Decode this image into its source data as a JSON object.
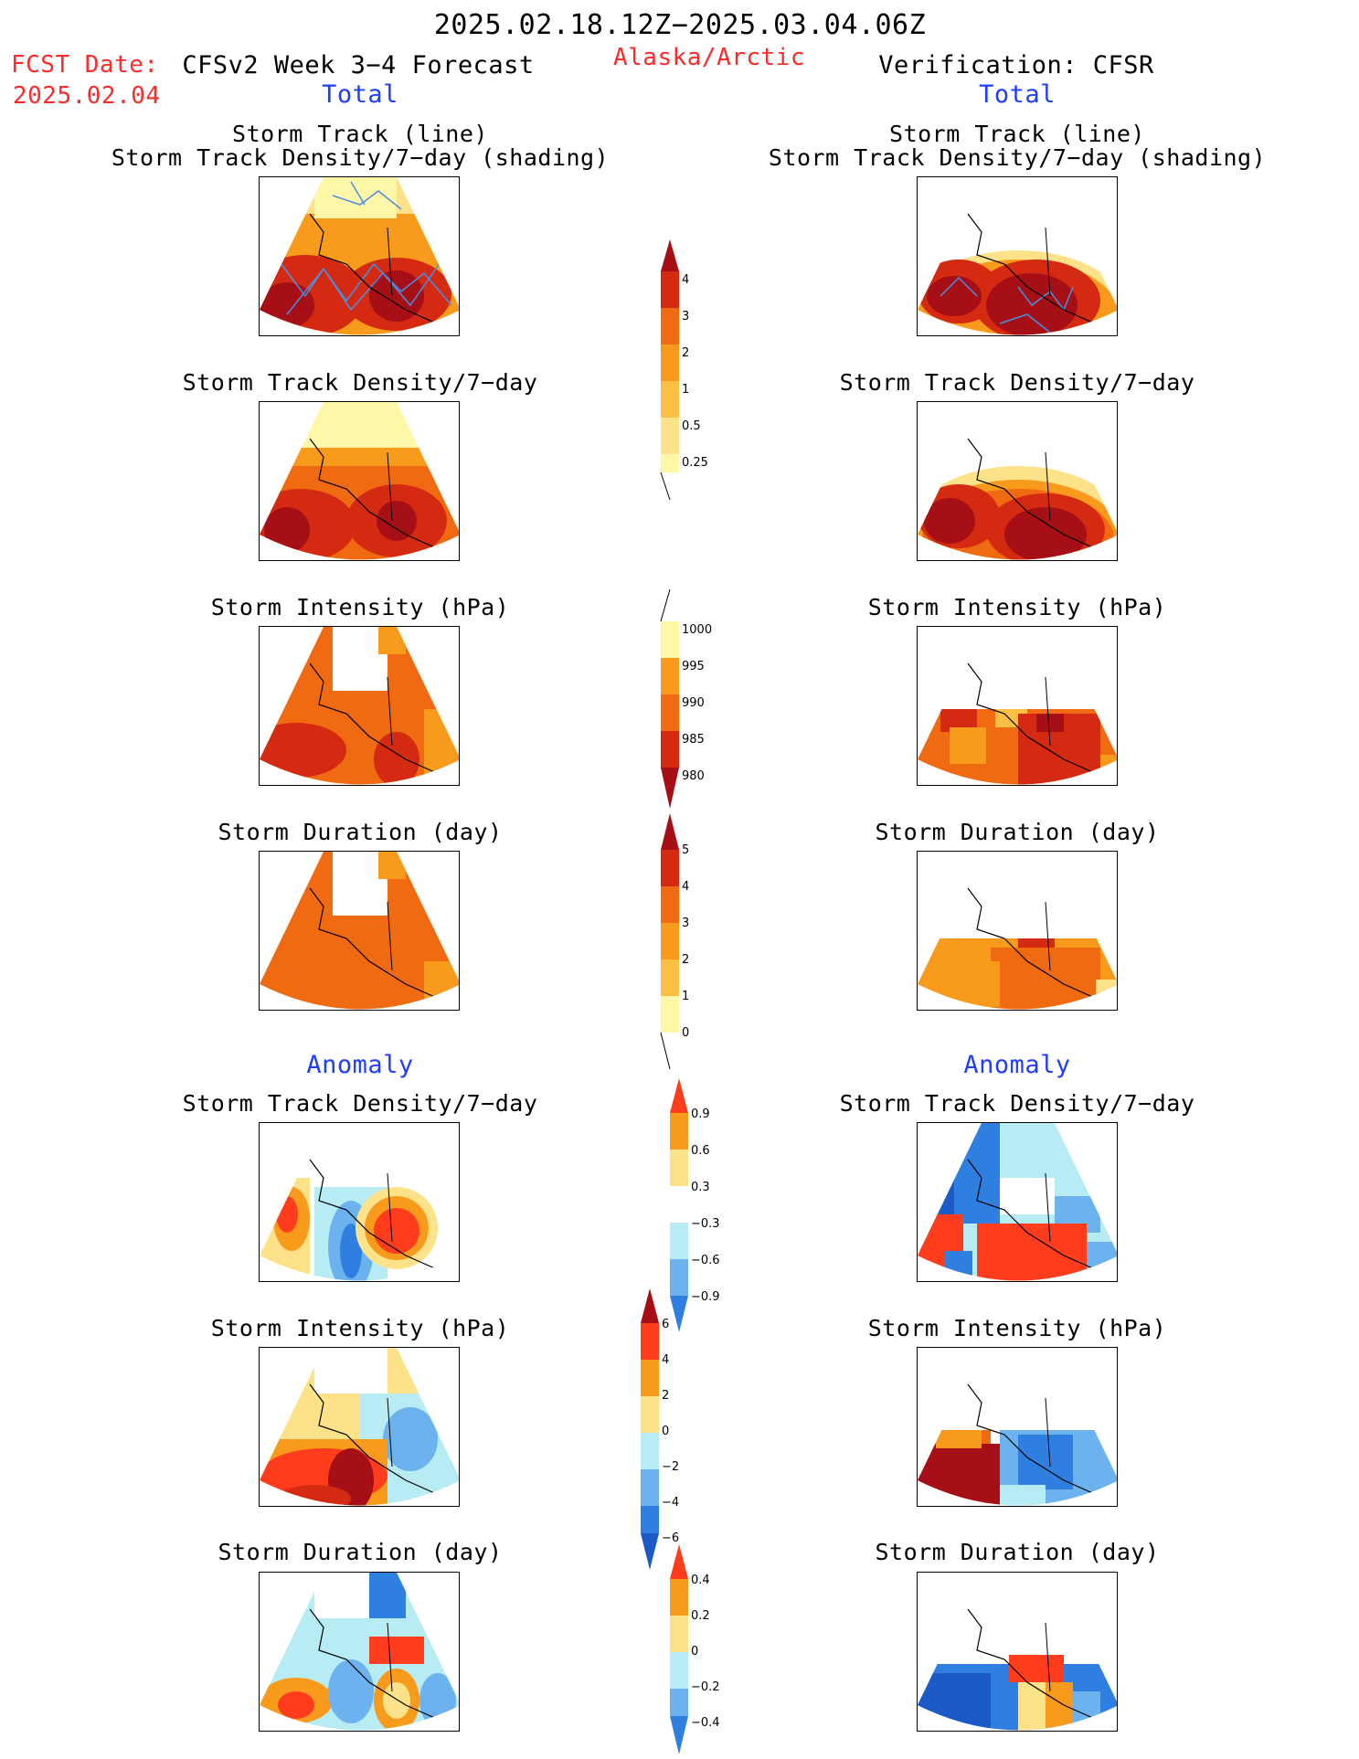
{
  "header": {
    "period": "2025.02.18.12Z−2025.03.04.06Z",
    "region": "Alaska/Arctic",
    "fcst_label": "FCST Date:",
    "fcst_date": "2025.02.04",
    "forecast_title": "CFSv2 Week 3−4 Forecast",
    "verification_title": "Verification: CFSR",
    "total_left": "Total",
    "total_right": "Total",
    "anomaly_left": "Anomaly",
    "anomaly_right": "Anomaly"
  },
  "panels": {
    "track_line": "Storm Track (line)",
    "track_shading": "Storm Track Density/7−day (shading)",
    "track_density": "Storm Track Density/7−day",
    "intensity": "Storm Intensity (hPa)",
    "duration": "Storm Duration (day)"
  },
  "colors": {
    "pale": "#fff7a8",
    "light_yellow": "#fde28a",
    "yellow_orange": "#fbbf45",
    "orange": "#f89b1c",
    "dark_orange": "#f06a12",
    "red": "#d42a12",
    "dark_red": "#a50f15",
    "light_blue": "#b7ecf5",
    "mid_blue": "#6cb2ef",
    "blue": "#2f7fe0",
    "dark_blue": "#1c5bc7",
    "red_orange": "#ff3c1c",
    "track_line": "#4a90e2"
  },
  "colorbars": {
    "density_total": [
      "4",
      "3",
      "2",
      "1",
      "0.5",
      "0.25"
    ],
    "intensity_total": [
      "1000",
      "995",
      "990",
      "985",
      "980"
    ],
    "duration_total": [
      "5",
      "4",
      "3",
      "2",
      "1",
      "0"
    ],
    "density_anom": [
      "0.9",
      "0.6",
      "0.3",
      "−0.3",
      "−0.6",
      "−0.9"
    ],
    "intensity_anom": [
      "6",
      "4",
      "2",
      "0",
      "−2",
      "−4",
      "−6"
    ],
    "duration_anom": [
      "0.4",
      "0.2",
      "0",
      "−0.2",
      "−0.4"
    ]
  }
}
